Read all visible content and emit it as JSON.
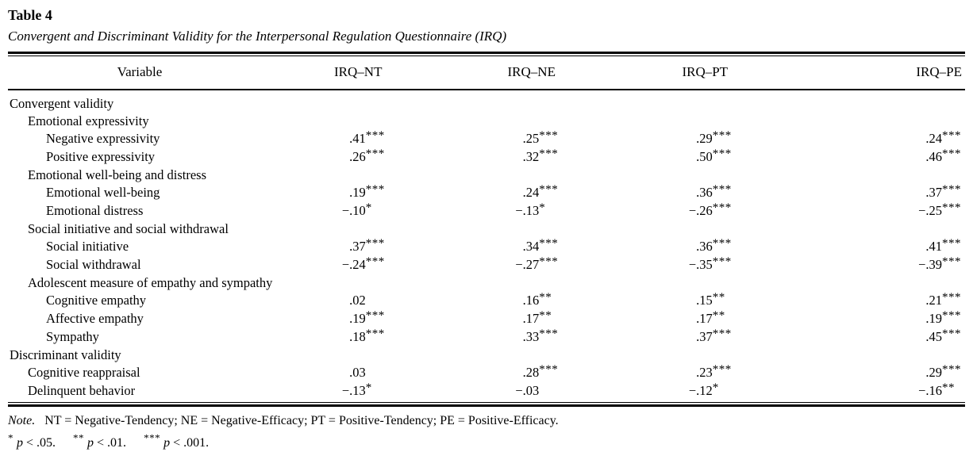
{
  "title": "Table 4",
  "subtitle": "Convergent and Discriminant Validity for the Interpersonal Regulation Questionnaire (IRQ)",
  "columns": [
    "Variable",
    "IRQ–NT",
    "IRQ–NE",
    "IRQ–PT",
    "IRQ–PE"
  ],
  "rows": [
    {
      "label": "Convergent validity",
      "indent": 0,
      "values": null
    },
    {
      "label": "Emotional expressivity",
      "indent": 1,
      "values": null
    },
    {
      "label": "Negative expressivity",
      "indent": 2,
      "values": [
        [
          ".41",
          "***"
        ],
        [
          ".25",
          "***"
        ],
        [
          ".29",
          "***"
        ],
        [
          ".24",
          "***"
        ]
      ]
    },
    {
      "label": "Positive expressivity",
      "indent": 2,
      "values": [
        [
          ".26",
          "***"
        ],
        [
          ".32",
          "***"
        ],
        [
          ".50",
          "***"
        ],
        [
          ".46",
          "***"
        ]
      ]
    },
    {
      "label": "Emotional well-being and distress",
      "indent": 1,
      "values": null
    },
    {
      "label": "Emotional well-being",
      "indent": 2,
      "values": [
        [
          ".19",
          "***"
        ],
        [
          ".24",
          "***"
        ],
        [
          ".36",
          "***"
        ],
        [
          ".37",
          "***"
        ]
      ]
    },
    {
      "label": "Emotional distress",
      "indent": 2,
      "values": [
        [
          "−.10",
          "*"
        ],
        [
          "−.13",
          "*"
        ],
        [
          "−.26",
          "***"
        ],
        [
          "−.25",
          "***"
        ]
      ]
    },
    {
      "label": "Social initiative and social withdrawal",
      "indent": 1,
      "values": null
    },
    {
      "label": "Social initiative",
      "indent": 2,
      "values": [
        [
          ".37",
          "***"
        ],
        [
          ".34",
          "***"
        ],
        [
          ".36",
          "***"
        ],
        [
          ".41",
          "***"
        ]
      ]
    },
    {
      "label": "Social withdrawal",
      "indent": 2,
      "values": [
        [
          "−.24",
          "***"
        ],
        [
          "−.27",
          "***"
        ],
        [
          "−.35",
          "***"
        ],
        [
          "−.39",
          "***"
        ]
      ]
    },
    {
      "label": "Adolescent measure of empathy and sympathy",
      "indent": 1,
      "values": null
    },
    {
      "label": "Cognitive empathy",
      "indent": 2,
      "values": [
        [
          ".02",
          ""
        ],
        [
          ".16",
          "**"
        ],
        [
          ".15",
          "**"
        ],
        [
          ".21",
          "***"
        ]
      ]
    },
    {
      "label": "Affective empathy",
      "indent": 2,
      "values": [
        [
          ".19",
          "***"
        ],
        [
          ".17",
          "**"
        ],
        [
          ".17",
          "**"
        ],
        [
          ".19",
          "***"
        ]
      ]
    },
    {
      "label": "Sympathy",
      "indent": 2,
      "values": [
        [
          ".18",
          "***"
        ],
        [
          ".33",
          "***"
        ],
        [
          ".37",
          "***"
        ],
        [
          ".45",
          "***"
        ]
      ]
    },
    {
      "label": "Discriminant validity",
      "indent": 0,
      "values": null
    },
    {
      "label": "Cognitive reappraisal",
      "indent": 1,
      "values": [
        [
          ".03",
          ""
        ],
        [
          ".28",
          "***"
        ],
        [
          ".23",
          "***"
        ],
        [
          ".29",
          "***"
        ]
      ]
    },
    {
      "label": "Delinquent behavior",
      "indent": 1,
      "values": [
        [
          "−.13",
          "*"
        ],
        [
          "−.03",
          ""
        ],
        [
          "−.12",
          "*"
        ],
        [
          "−.16",
          "**"
        ]
      ]
    }
  ],
  "note": {
    "label": "Note.",
    "text": "NT = Negative-Tendency; NE = Negative-Efficacy; PT = Positive-Tendency; PE = Positive-Efficacy.",
    "sig": [
      {
        "stars": "*",
        "p": "p",
        "rest": "< .05."
      },
      {
        "stars": "**",
        "p": "p",
        "rest": "< .01."
      },
      {
        "stars": "***",
        "p": "p",
        "rest": "< .001."
      }
    ]
  }
}
